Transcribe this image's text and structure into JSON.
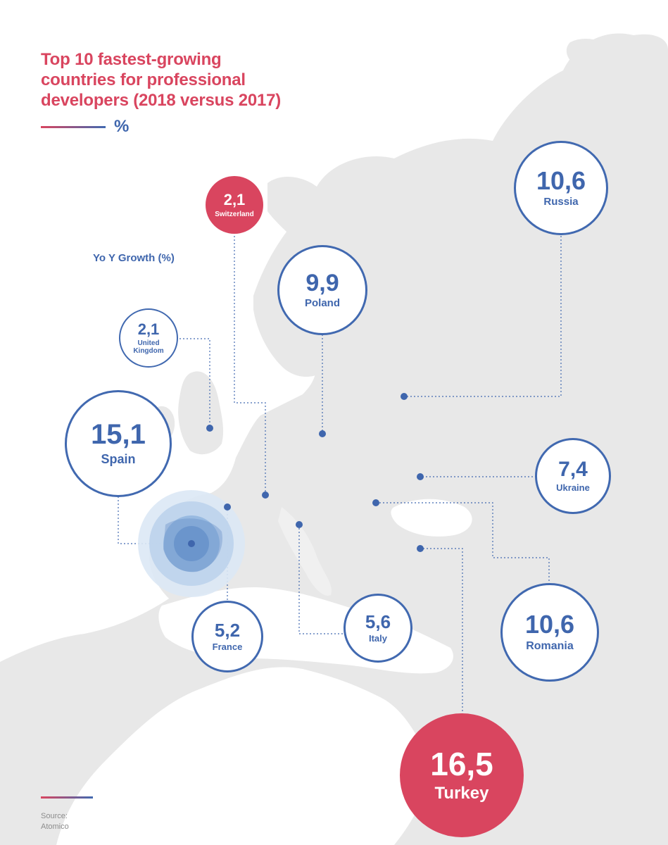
{
  "title": {
    "line1": "Top 10 fastest-growing",
    "line2": "countries for professional",
    "line3": "developers (2018 versus 2017)"
  },
  "unit": "%",
  "legend_label": "Yo Y Growth (%)",
  "countries": {
    "switzerland": {
      "value": "2,1",
      "name": "Switzerland"
    },
    "russia": {
      "value": "10,6",
      "name": "Russia"
    },
    "poland": {
      "value": "9,9",
      "name": "Poland"
    },
    "united_kingdom": {
      "value": "2,1",
      "name_line1": "United",
      "name_line2": "Kingdom"
    },
    "spain": {
      "value": "15,1",
      "name": "Spain"
    },
    "ukraine": {
      "value": "7,4",
      "name": "Ukraine"
    },
    "france": {
      "value": "5,2",
      "name": "France"
    },
    "italy": {
      "value": "5,6",
      "name": "Italy"
    },
    "romania": {
      "value": "10,6",
      "name": "Romania"
    },
    "turkey": {
      "value": "16,5",
      "name": "Turkey"
    }
  },
  "source": {
    "label": "Source:",
    "name": "Atomico"
  },
  "colors": {
    "accent_red": "#d9455f",
    "accent_blue": "#4169b0",
    "land_gray": "#e8e8e8",
    "spain_rings": [
      "#dce8f5",
      "#bcd3ec",
      "#93b7df",
      "#6f9ad0"
    ]
  }
}
